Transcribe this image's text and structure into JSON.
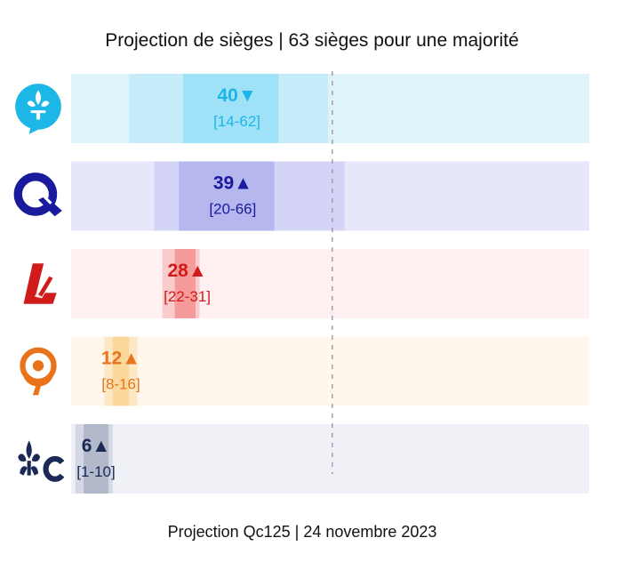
{
  "chart_data": {
    "type": "bar",
    "title": "Projection de sièges | 63 sièges pour une majorité",
    "xlim": [
      0,
      125
    ],
    "majority_line": 63,
    "series": [
      {
        "party_icon": "fleur-de-lis-bubble-icon",
        "value": 40,
        "trend": "▼",
        "range_label": "[14-62]",
        "low": 14,
        "high": 62,
        "inner_low": 27,
        "inner_high": 50,
        "color": "#1cb7e6",
        "bg": "#dff3fb",
        "outer": "#c6ecfa",
        "inner": "#9fe1f7"
      },
      {
        "party_icon": "q-letter-icon",
        "value": 39,
        "trend": "▲",
        "range_label": "[20-66]",
        "low": 20,
        "high": 66,
        "inner_low": 26,
        "inner_high": 49,
        "color": "#1a1a9c",
        "bg": "#e7e7fb",
        "outer": "#d4d4f7",
        "inner": "#b7b7ef"
      },
      {
        "party_icon": "liberal-l-icon",
        "value": 28,
        "trend": "▲",
        "range_label": "[22-31]",
        "low": 22,
        "high": 31,
        "inner_low": 25,
        "inner_high": 30,
        "color": "#d11a1a",
        "bg": "#fff1f1",
        "outer": "#fbcccc",
        "inner": "#f59b9b"
      },
      {
        "party_icon": "qs-person-icon",
        "value": 12,
        "trend": "▲",
        "range_label": "[8-16]",
        "low": 8,
        "high": 16,
        "inner_low": 10,
        "inner_high": 14,
        "color": "#e8731a",
        "bg": "#fff7eb",
        "outer": "#fde8c6",
        "inner": "#fbd89c"
      },
      {
        "party_icon": "pcq-fleur-c-icon",
        "value": 6,
        "trend": "▲",
        "range_label": "[1-10]",
        "low": 1,
        "high": 10,
        "inner_low": 3,
        "inner_high": 9,
        "color": "#1a2a55",
        "bg": "#f0f1f6",
        "outer": "#d4d8e4",
        "inner": "#b3b8ca"
      }
    ]
  },
  "footer": "Projection Qc125 | 24 novembre 2023"
}
